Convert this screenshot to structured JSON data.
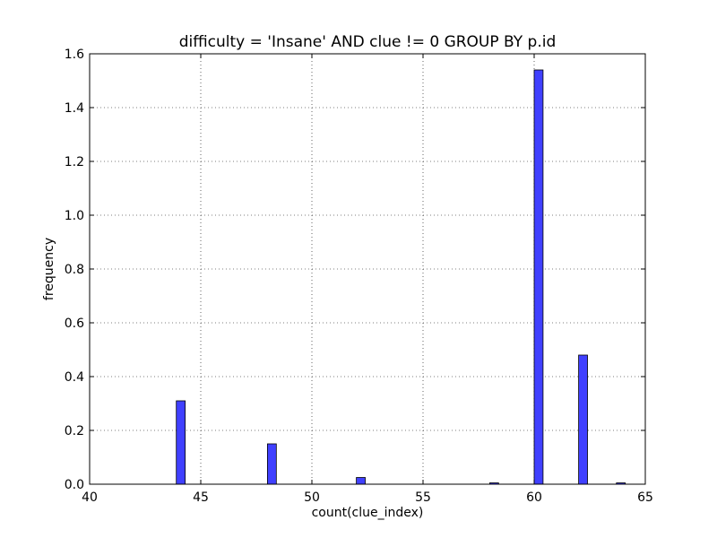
{
  "chart_data": {
    "type": "bar",
    "title": "difficulty = 'Insane' AND clue != 0 GROUP BY p.id",
    "xlabel": "count(clue_index)",
    "ylabel": "frequency",
    "xlim": [
      40,
      65
    ],
    "ylim": [
      0,
      1.6
    ],
    "x_ticks": [
      40,
      45,
      50,
      55,
      60,
      65
    ],
    "x_tick_labels": [
      "40",
      "45",
      "50",
      "55",
      "60",
      "65"
    ],
    "y_ticks": [
      0.0,
      0.2,
      0.4,
      0.6,
      0.8,
      1.0,
      1.2,
      1.4,
      1.6
    ],
    "y_tick_labels": [
      "0.0",
      "0.2",
      "0.4",
      "0.6",
      "0.8",
      "1.0",
      "1.2",
      "1.4",
      "1.6"
    ],
    "grid": true,
    "bar_color": "#4040ff",
    "bars": [
      {
        "x_start": 43.9,
        "x_end": 44.3,
        "value": 0.31
      },
      {
        "x_start": 48.0,
        "x_end": 48.4,
        "value": 0.15
      },
      {
        "x_start": 52.0,
        "x_end": 52.4,
        "value": 0.025
      },
      {
        "x_start": 58.0,
        "x_end": 58.4,
        "value": 0.005
      },
      {
        "x_start": 60.0,
        "x_end": 60.4,
        "value": 1.54
      },
      {
        "x_start": 62.0,
        "x_end": 62.4,
        "value": 0.48
      },
      {
        "x_start": 63.7,
        "x_end": 64.1,
        "value": 0.005
      }
    ]
  }
}
